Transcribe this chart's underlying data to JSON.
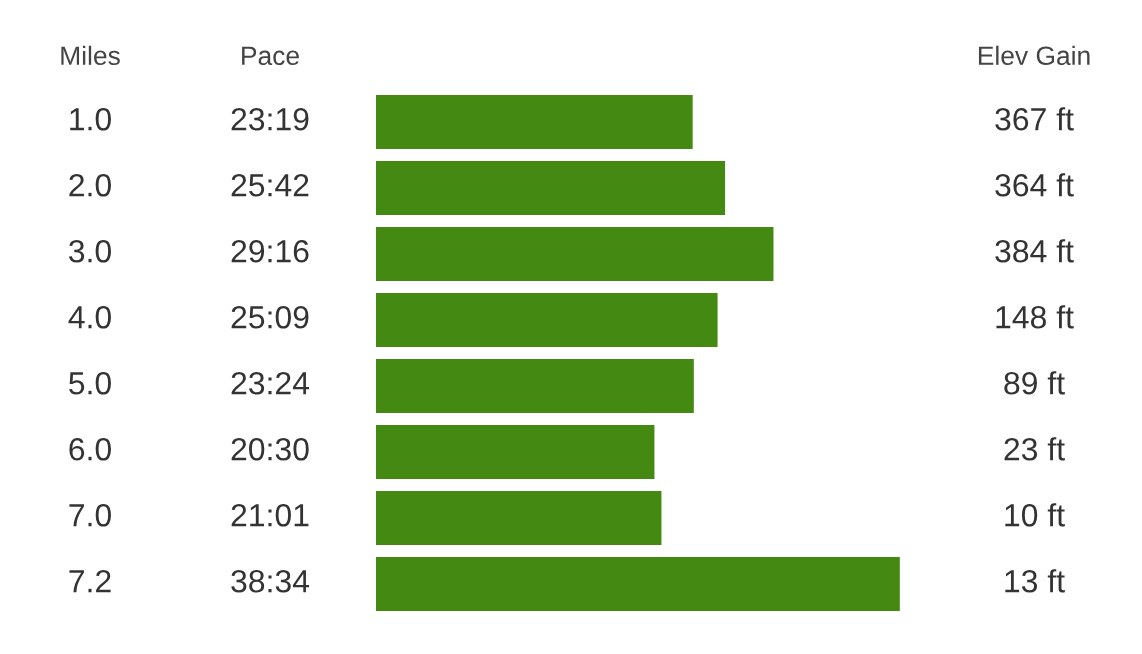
{
  "chart_data": {
    "type": "bar",
    "orientation": "horizontal",
    "ylabel": "Miles",
    "xlabel": "Pace",
    "categories": [
      "1.0",
      "2.0",
      "3.0",
      "4.0",
      "5.0",
      "6.0",
      "7.0",
      "7.2"
    ],
    "values": [
      23.317,
      25.7,
      29.267,
      25.15,
      23.4,
      20.5,
      21.017,
      38.567
    ],
    "value_labels": [
      "23:19",
      "25:42",
      "29:16",
      "25:09",
      "23:24",
      "20:30",
      "21:01",
      "38:34"
    ],
    "color": "#448a12",
    "annotations": [
      "Elev Gain",
      "367 ft",
      "364 ft",
      "384 ft",
      "148 ft",
      "89 ft",
      "23 ft",
      "10 ft",
      "13 ft"
    ]
  }
}
